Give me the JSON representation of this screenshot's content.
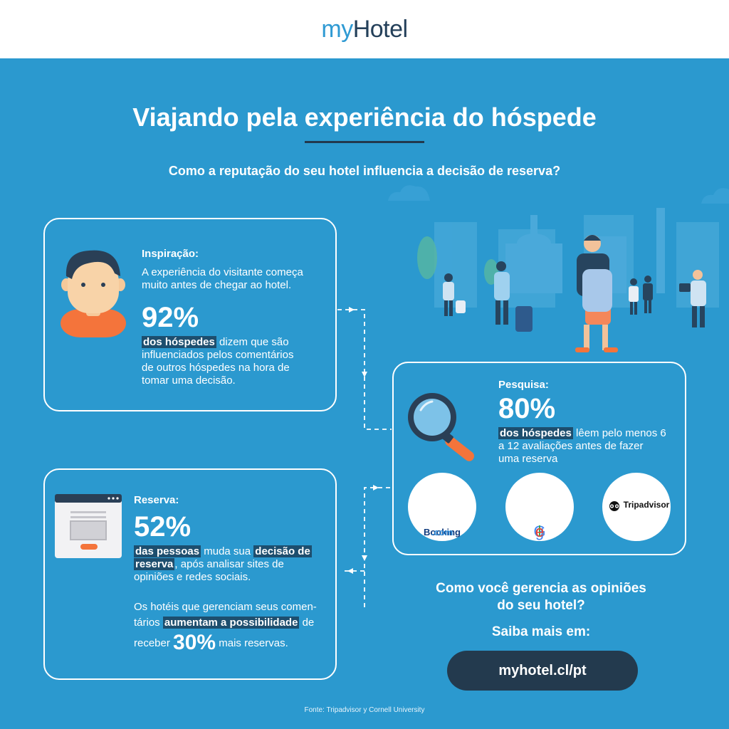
{
  "brand": {
    "logo_my": "my",
    "logo_hotel": "Hotel"
  },
  "title": "Viajando pela experiência do hóspede",
  "subtitle": "Como a reputação do seu hotel influencia a decisão de reserva?",
  "inspiracao": {
    "heading": "Inspiração:",
    "intro": "A experiência do visitante começa muito antes de chegar ao hotel.",
    "stat": "92%",
    "highlight": "dos hóspedes",
    "line1_rest": " dizem que são",
    "line2": "influenciados pelos comentários",
    "line3": "de outros hóspedes na hora de",
    "line4": "tomar uma decisão."
  },
  "pesquisa": {
    "heading": "Pesquisa:",
    "stat": "80%",
    "highlight": "dos hóspedes",
    "line1_rest": " lêem pelo menos 6",
    "line2": "a 12 avaliações antes de fazer",
    "line3": "uma reserva",
    "sites": {
      "booking_name": "Booking",
      "booking_tld": ".com",
      "google": "Google",
      "tripadvisor": "Tripadvisor"
    }
  },
  "reserva": {
    "heading": "Reserva:",
    "stat": "52%",
    "highlight1": "das pessoas",
    "mid1": " muda sua ",
    "highlight2a": "decisão de",
    "highlight2b": "reserva",
    "line2_rest": ", após analisar sites de",
    "line3": "opiniões e redes sociais.",
    "p2_line1": "Os hotéis que gerenciam seus comen-",
    "p2_line2_start": "tários ",
    "highlight3": "aumentam a possibilidade",
    "p2_line2_end": " de",
    "p2_line3_start": "receber ",
    "stat2": "30%",
    "p2_line3_end": " mais reservas."
  },
  "cta": {
    "question_line1": "Como você gerencia as opiniões",
    "question_line2": "do seu hotel?",
    "learn_more": "Saiba mais em:",
    "url": "myhotel.cl/pt"
  },
  "source": "Fonte: Tripadvisor y Cornell University",
  "colors": {
    "background": "#2b99cf",
    "dark": "#233a4e",
    "highlight": "#1d4e6e",
    "accent_orange": "#f4743b"
  },
  "icons": [
    "person-icon",
    "magnifier-icon",
    "browser-window-icon",
    "tripadvisor-owl-icon"
  ]
}
